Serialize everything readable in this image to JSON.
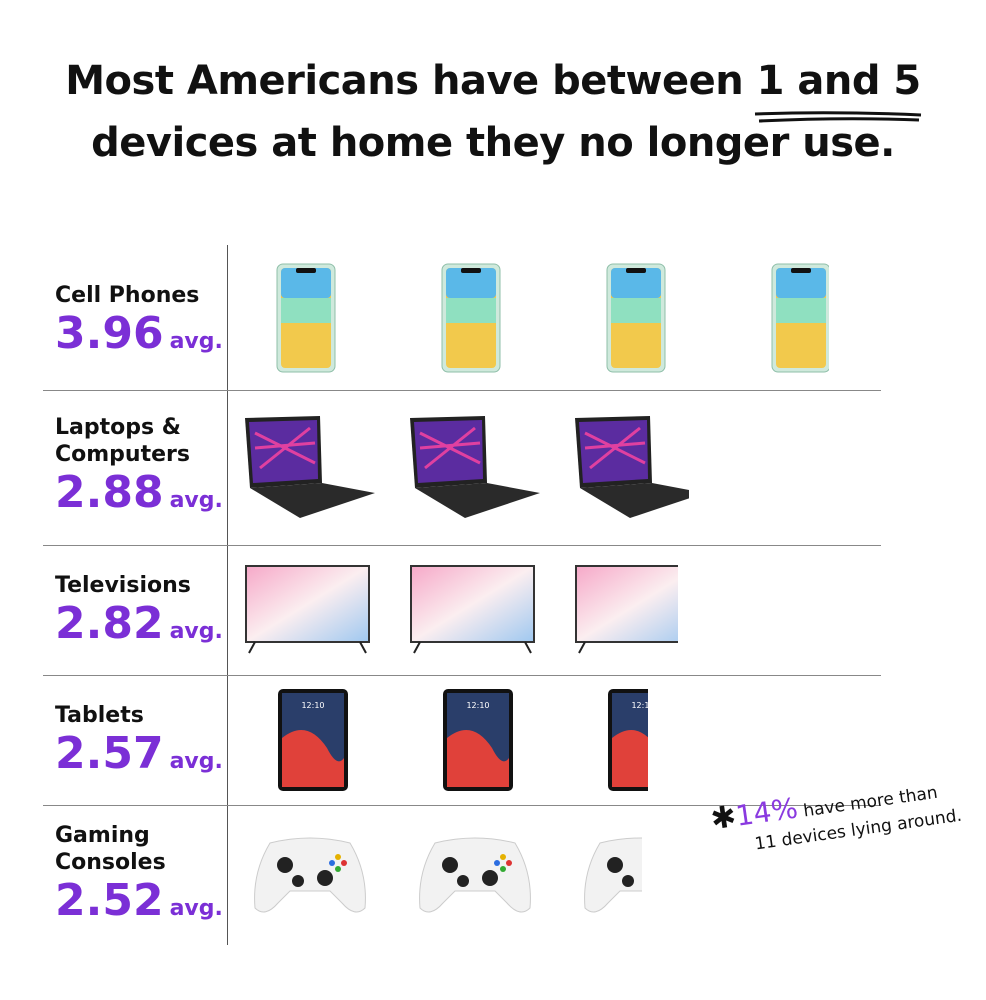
{
  "title": {
    "line1_prefix": "Most Americans have between ",
    "line1_highlight": "1 and 5",
    "line2": "devices at home they no longer use."
  },
  "chart_data": {
    "type": "pictograph",
    "unit_label": "avg.",
    "categories": [
      "Cell Phones",
      "Laptops & Computers",
      "Televisions",
      "Tablets",
      "Gaming Consoles"
    ],
    "values": [
      3.96,
      2.88,
      2.82,
      2.57,
      2.52
    ],
    "value_labels": [
      "3.96",
      "2.88",
      "2.82",
      "2.57",
      "2.52"
    ],
    "icons": [
      "phone-icon",
      "laptop-icon",
      "tv-icon",
      "tablet-icon",
      "controller-icon"
    ]
  },
  "annotation": {
    "percent": "14%",
    "line1": "have more than",
    "line2": "11 devices lying around."
  },
  "colors": {
    "accent": "#7b2fd6",
    "text": "#111111"
  }
}
